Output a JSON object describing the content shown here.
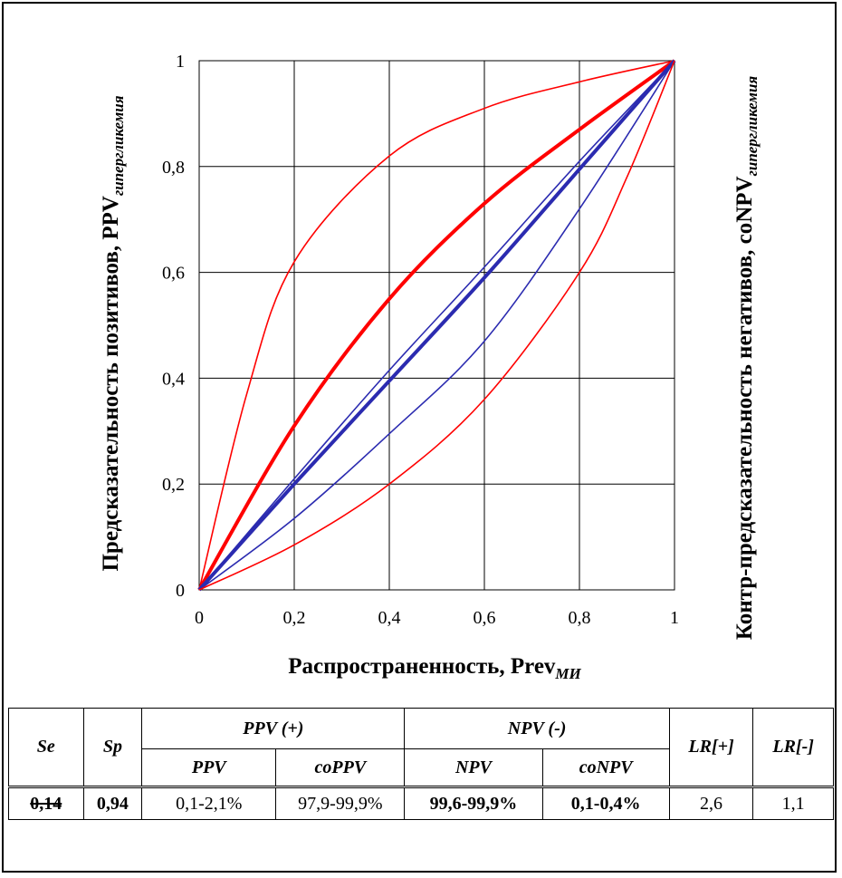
{
  "chart_data": {
    "type": "line",
    "xlabel": "Распространенность,  Prev",
    "xlabel_sub": "МИ",
    "ylabel_left": "Предсказательность  позитивов,  PPV",
    "ylabel_left_sub": "гипергликемия",
    "ylabel_right": "Контр-предсказательность  негативов,  coNPV",
    "ylabel_right_sub": "гипергликемия",
    "xlim": [
      0,
      1
    ],
    "ylim": [
      0,
      1
    ],
    "xticks": [
      "0",
      "0,2",
      "0,4",
      "0,6",
      "0,8",
      "1"
    ],
    "yticks": [
      "0",
      "0,2",
      "0,4",
      "0,6",
      "0,8",
      "1"
    ],
    "grid": true,
    "series": [
      {
        "color": "#ff0000",
        "width": "thin",
        "x": [
          0,
          0.1,
          0.2,
          0.4,
          0.6,
          0.8,
          1
        ],
        "values": [
          0,
          0.37,
          0.62,
          0.82,
          0.91,
          0.96,
          1
        ]
      },
      {
        "color": "#ff0000",
        "width": "thick",
        "x": [
          0,
          0.2,
          0.4,
          0.6,
          0.8,
          1
        ],
        "values": [
          0,
          0.31,
          0.55,
          0.73,
          0.87,
          1
        ]
      },
      {
        "color": "#2b2bb0",
        "width": "thin",
        "x": [
          0,
          0.2,
          0.4,
          0.6,
          0.8,
          1
        ],
        "values": [
          0,
          0.21,
          0.415,
          0.61,
          0.81,
          1
        ]
      },
      {
        "color": "#2b2bb0",
        "width": "thick",
        "x": [
          0,
          0.2,
          0.4,
          0.6,
          0.8,
          1
        ],
        "values": [
          0,
          0.2,
          0.395,
          0.59,
          0.795,
          1
        ]
      },
      {
        "color": "#2b2bb0",
        "width": "thin",
        "x": [
          0,
          0.2,
          0.4,
          0.6,
          0.8,
          1
        ],
        "values": [
          0,
          0.135,
          0.295,
          0.47,
          0.72,
          1
        ]
      },
      {
        "color": "#ff0000",
        "width": "thin",
        "x": [
          0,
          0.2,
          0.4,
          0.6,
          0.8,
          0.9,
          1
        ],
        "values": [
          0,
          0.085,
          0.2,
          0.36,
          0.6,
          0.78,
          1
        ]
      }
    ]
  },
  "table": {
    "head1": {
      "se": "Se",
      "sp": "Sp",
      "ppv_group": "PPV (+)",
      "npv_group": "NPV (-)",
      "lr_plus": "LR[+]",
      "lr_minus": "LR[-]"
    },
    "head2": {
      "ppv": "PPV",
      "coppv": "coPPV",
      "npv": "NPV",
      "conpv": "coNPV"
    },
    "values": {
      "se": "0,14",
      "sp": "0,94",
      "ppv": "0,1-2,1%",
      "coppv": "97,9-99,9%",
      "npv": "99,6-99,9%",
      "conpv": "0,1-0,4%",
      "lr_plus": "2,6",
      "lr_minus": "1,1"
    }
  }
}
